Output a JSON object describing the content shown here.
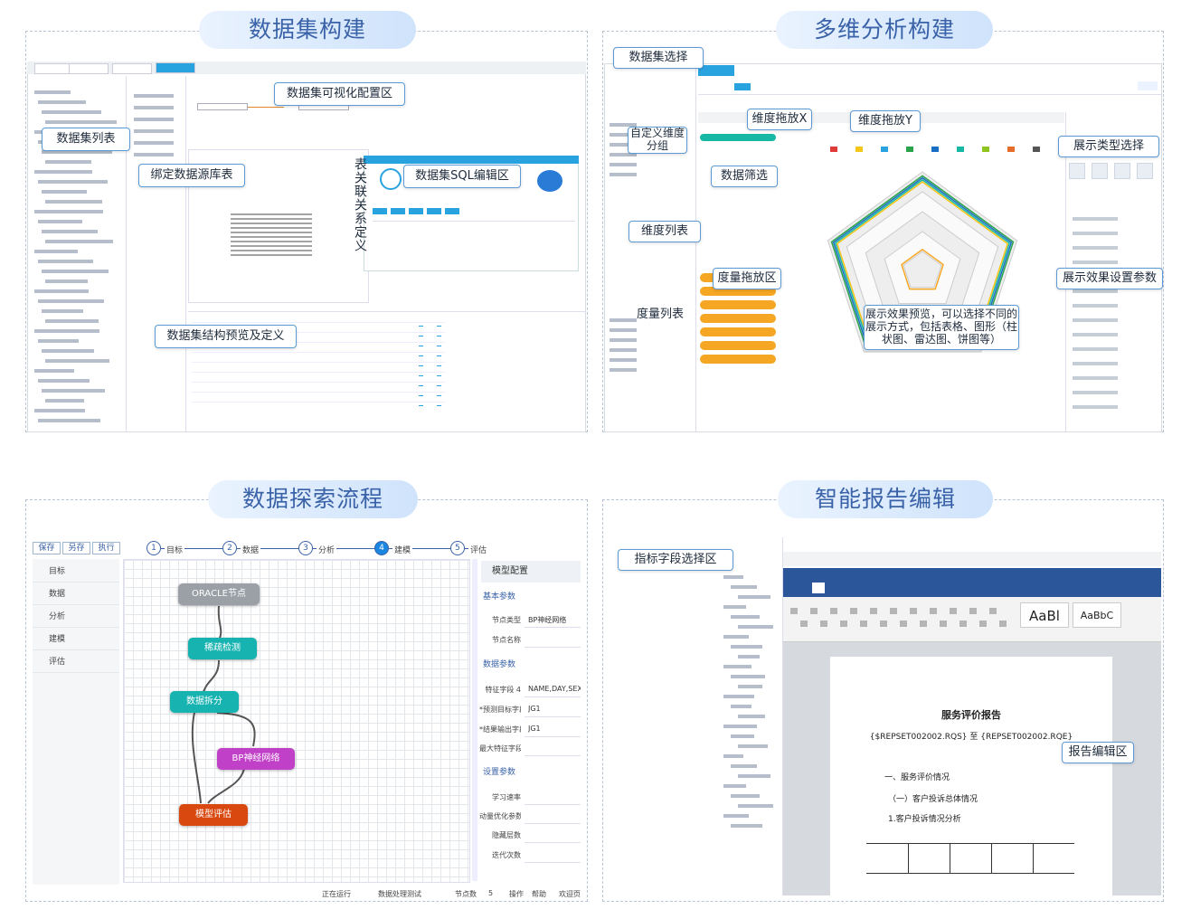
{
  "sections": [
    {
      "title": "数据集构建",
      "callouts": [
        "数据集可视化配置区",
        "数据集列表",
        "绑定数据源库表",
        "数据集SQL编辑区",
        "表关联关系定义",
        "数据集结构预览及定义"
      ]
    },
    {
      "title": "多维分析构建",
      "callouts": [
        "数据集选择",
        "维度拖放X",
        "维度拖放Y",
        "自定义维度分组",
        "数据筛选",
        "展示类型选择",
        "维度列表",
        "度量拖放区",
        "展示效果设置参数",
        "度量列表",
        "展示效果预览，可以选择不同的展示方式，包括表格、图形（柱状图、雷达图、饼图等）"
      ]
    },
    {
      "title": "数据探索流程",
      "toolbar": [
        "保存",
        "另存",
        "执行"
      ],
      "steps": [
        {
          "number": 1,
          "label": "目标"
        },
        {
          "number": 2,
          "label": "数据"
        },
        {
          "number": 3,
          "label": "分析"
        },
        {
          "number": 4,
          "label": "建模"
        },
        {
          "number": 5,
          "label": "评估"
        }
      ],
      "menu": [
        "目标",
        "数据",
        "分析",
        "建模",
        "评估"
      ],
      "nodes": [
        "ORACLE节点",
        "稀疏检测",
        "数据拆分",
        "BP神经网络",
        "模型评估"
      ],
      "config": {
        "title": "模型配置",
        "groups": [
          "基本参数",
          "数据参数",
          "设置参数"
        ],
        "fields": [
          {
            "label": "节点类型",
            "value": "BP神经网络"
          },
          {
            "label": "节点名称"
          },
          {
            "label": "特征字段 4",
            "value": "NAME,DAY,SEX,"
          },
          {
            "label": "*预测目标字段",
            "value": "JG1"
          },
          {
            "label": "*结果输出字段",
            "value": "JG1"
          },
          {
            "label": "最大特征字段数"
          },
          {
            "label": "学习速率"
          },
          {
            "label": "动量优化参数"
          },
          {
            "label": "隐藏层数"
          },
          {
            "label": "迭代次数"
          }
        ]
      },
      "status": [
        "正在运行",
        "数据处理测试",
        "节点数",
        "5",
        "操作",
        "帮助",
        "欢迎页"
      ]
    },
    {
      "title": "智能报告编辑",
      "callouts": [
        "指标字段选择区",
        "报告编辑区"
      ],
      "styles": [
        "AaBl",
        "AaBbC"
      ],
      "document": {
        "title": "服务评价报告",
        "period": "{$REPSET002002.RQS} 至 {REPSET002002.RQE}",
        "headings": [
          "一、服务评价情况",
          "（一）客户投诉总体情况",
          "1.客户投诉情况分析"
        ]
      }
    }
  ]
}
